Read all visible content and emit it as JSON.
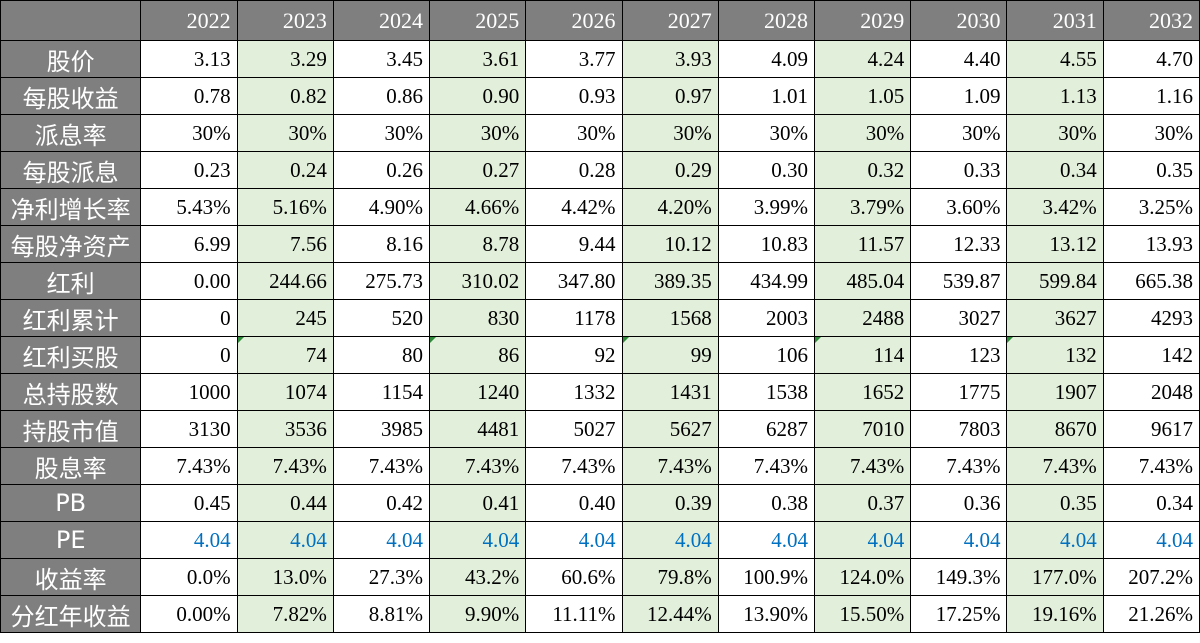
{
  "years": [
    "2022",
    "2023",
    "2024",
    "2025",
    "2026",
    "2027",
    "2028",
    "2029",
    "2030",
    "2031",
    "2032"
  ],
  "highlight_columns": [
    1,
    3,
    5,
    7,
    9
  ],
  "colors": {
    "header_bg": "#7f7f7f",
    "header_text": "#ffffff",
    "highlight_bg": "#e2efda",
    "pe_text": "#0070c0",
    "triangle_marker": "#2e8b3a"
  },
  "rows": [
    {
      "label": "股价",
      "values": [
        "3.13",
        "3.29",
        "3.45",
        "3.61",
        "3.77",
        "3.93",
        "4.09",
        "4.24",
        "4.40",
        "4.55",
        "4.70"
      ]
    },
    {
      "label": "每股收益",
      "values": [
        "0.78",
        "0.82",
        "0.86",
        "0.90",
        "0.93",
        "0.97",
        "1.01",
        "1.05",
        "1.09",
        "1.13",
        "1.16"
      ]
    },
    {
      "label": "派息率",
      "values": [
        "30%",
        "30%",
        "30%",
        "30%",
        "30%",
        "30%",
        "30%",
        "30%",
        "30%",
        "30%",
        "30%"
      ]
    },
    {
      "label": "每股派息",
      "values": [
        "0.23",
        "0.24",
        "0.26",
        "0.27",
        "0.28",
        "0.29",
        "0.30",
        "0.32",
        "0.33",
        "0.34",
        "0.35"
      ]
    },
    {
      "label": "净利增长率",
      "values": [
        "5.43%",
        "5.16%",
        "4.90%",
        "4.66%",
        "4.42%",
        "4.20%",
        "3.99%",
        "3.79%",
        "3.60%",
        "3.42%",
        "3.25%"
      ]
    },
    {
      "label": "每股净资产",
      "values": [
        "6.99",
        "7.56",
        "8.16",
        "8.78",
        "9.44",
        "10.12",
        "10.83",
        "11.57",
        "12.33",
        "13.12",
        "13.93"
      ]
    },
    {
      "label": "红利",
      "values": [
        "0.00",
        "244.66",
        "275.73",
        "310.02",
        "347.80",
        "389.35",
        "434.99",
        "485.04",
        "539.87",
        "599.84",
        "665.38"
      ]
    },
    {
      "label": "红利累计",
      "values": [
        "0",
        "245",
        "520",
        "830",
        "1178",
        "1568",
        "2003",
        "2488",
        "3027",
        "3627",
        "4293"
      ]
    },
    {
      "label": "红利买股",
      "values": [
        "0",
        "74",
        "80",
        "86",
        "92",
        "99",
        "106",
        "114",
        "123",
        "132",
        "142"
      ],
      "triangle_markers": true
    },
    {
      "label": "总持股数",
      "values": [
        "1000",
        "1074",
        "1154",
        "1240",
        "1332",
        "1431",
        "1538",
        "1652",
        "1775",
        "1907",
        "2048"
      ]
    },
    {
      "label": "持股市值",
      "values": [
        "3130",
        "3536",
        "3985",
        "4481",
        "5027",
        "5627",
        "6287",
        "7010",
        "7803",
        "8670",
        "9617"
      ]
    },
    {
      "label": "股息率",
      "values": [
        "7.43%",
        "7.43%",
        "7.43%",
        "7.43%",
        "7.43%",
        "7.43%",
        "7.43%",
        "7.43%",
        "7.43%",
        "7.43%",
        "7.43%"
      ]
    },
    {
      "label": "PB",
      "values": [
        "0.45",
        "0.44",
        "0.42",
        "0.41",
        "0.40",
        "0.39",
        "0.38",
        "0.37",
        "0.36",
        "0.35",
        "0.34"
      ]
    },
    {
      "label": "PE",
      "values": [
        "4.04",
        "4.04",
        "4.04",
        "4.04",
        "4.04",
        "4.04",
        "4.04",
        "4.04",
        "4.04",
        "4.04",
        "4.04"
      ],
      "blue": true
    },
    {
      "label": "收益率",
      "values": [
        "0.0%",
        "13.0%",
        "27.3%",
        "43.2%",
        "60.6%",
        "79.8%",
        "100.9%",
        "124.0%",
        "149.3%",
        "177.0%",
        "207.2%"
      ]
    },
    {
      "label": "分红年收益",
      "values": [
        "0.00%",
        "7.82%",
        "8.81%",
        "9.90%",
        "11.11%",
        "12.44%",
        "13.90%",
        "15.50%",
        "17.25%",
        "19.16%",
        "21.26%"
      ]
    }
  ]
}
